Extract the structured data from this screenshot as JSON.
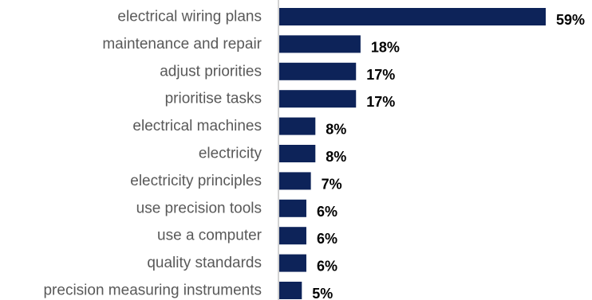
{
  "colors": {
    "bar": "#0d2359",
    "axis": "#a6a6a6",
    "category_text": "#595959",
    "value_text": "#000000"
  },
  "chart_data": {
    "type": "bar",
    "orientation": "horizontal",
    "title": "",
    "xlabel": "",
    "ylabel": "",
    "grid": false,
    "legend": "none",
    "value_suffix": "%",
    "xlim": [
      0,
      59
    ],
    "categories": [
      "electrical wiring plans",
      "maintenance and repair",
      "adjust priorities",
      "prioritise tasks",
      "electrical machines",
      "electricity",
      "electricity principles",
      "use precision tools",
      "use a computer",
      "quality standards",
      "precision measuring instruments"
    ],
    "values": [
      59,
      18,
      17,
      17,
      8,
      8,
      7,
      6,
      6,
      6,
      5
    ],
    "data_labels": [
      "59%",
      "18%",
      "17%",
      "17%",
      "8%",
      "8%",
      "7%",
      "6%",
      "6%",
      "6%",
      "5%"
    ]
  }
}
